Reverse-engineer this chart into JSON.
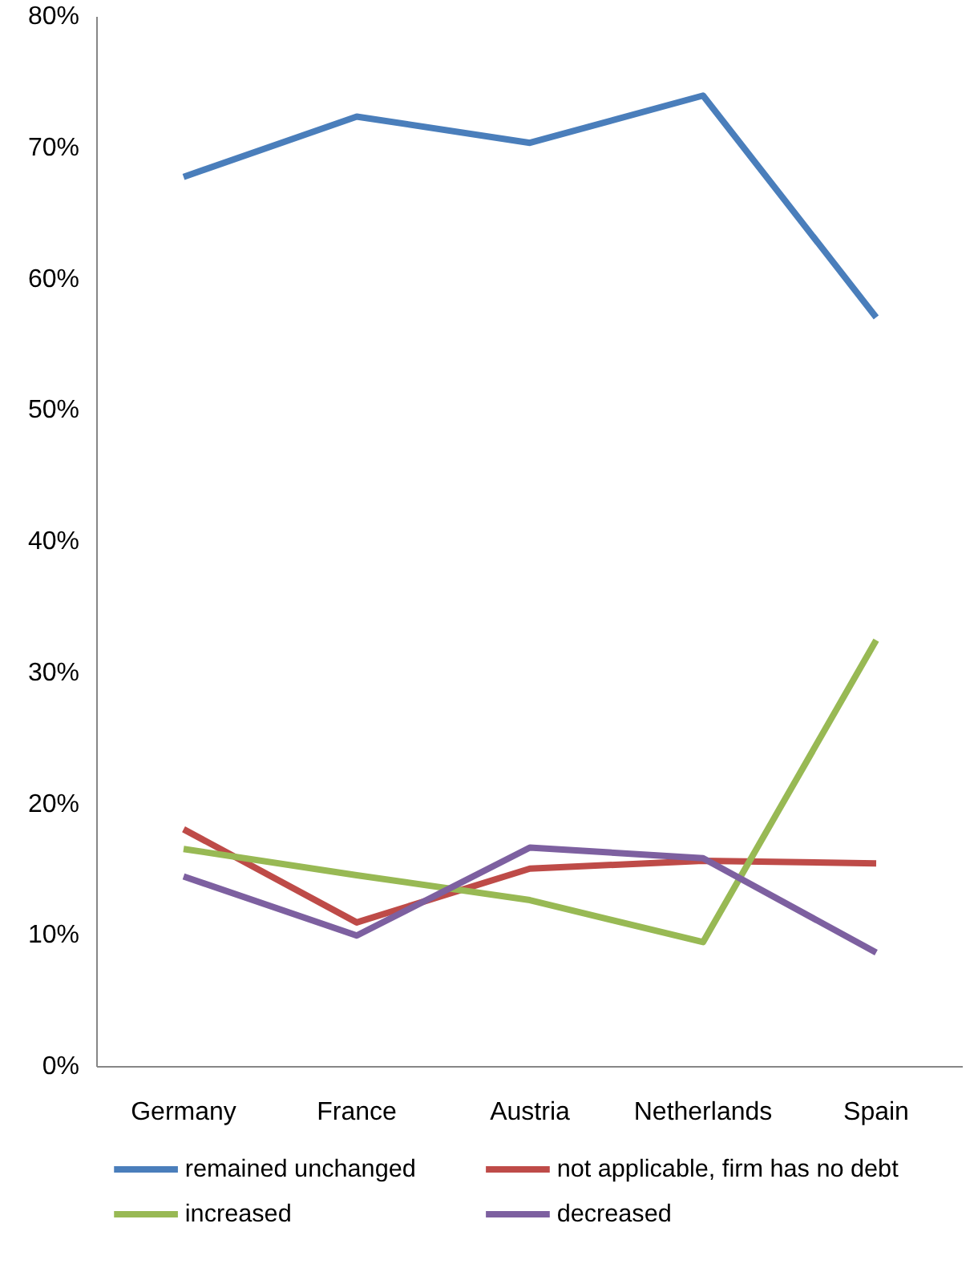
{
  "chart_data": {
    "type": "line",
    "categories": [
      "Germany",
      "France",
      "Austria",
      "Netherlands",
      "Spain"
    ],
    "series": [
      {
        "name": "remained unchanged",
        "color": "#4a7ebb",
        "values": [
          67.8,
          72.4,
          70.4,
          74.0,
          57.1
        ]
      },
      {
        "name": "not applicable,  firm has no debt",
        "color": "#be4b48",
        "values": [
          18.1,
          11.0,
          15.1,
          15.7,
          15.5
        ]
      },
      {
        "name": "increased",
        "color": "#98b954",
        "values": [
          16.6,
          14.6,
          12.7,
          9.5,
          32.5
        ]
      },
      {
        "name": "decreased",
        "color": "#7d60a0",
        "values": [
          14.5,
          10.0,
          16.7,
          15.9,
          8.7
        ]
      }
    ],
    "ylim": [
      0,
      80
    ],
    "yticks": [
      {
        "value": 0,
        "label": "0%"
      },
      {
        "value": 10,
        "label": "10%"
      },
      {
        "value": 20,
        "label": "20%"
      },
      {
        "value": 30,
        "label": "30%"
      },
      {
        "value": 40,
        "label": "40%"
      },
      {
        "value": 50,
        "label": "50%"
      },
      {
        "value": 60,
        "label": "60%"
      },
      {
        "value": 70,
        "label": "70%"
      },
      {
        "value": 80,
        "label": "80%"
      }
    ],
    "grid": false,
    "legend": "bottom",
    "marker": "none",
    "line_style": "solid"
  }
}
